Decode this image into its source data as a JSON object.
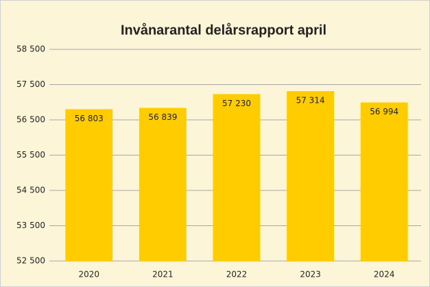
{
  "chart_data": {
    "type": "bar",
    "title": "Invånarantal delårsrapport april",
    "categories": [
      "2020",
      "2021",
      "2022",
      "2023",
      "2024"
    ],
    "values": [
      56803,
      56839,
      57230,
      57314,
      56994
    ],
    "value_labels": [
      "56 803",
      "56 839",
      "57 230",
      "57 314",
      "56 994"
    ],
    "color": "#ffcc00",
    "ylim": [
      52500,
      58500
    ],
    "yticks": [
      {
        "value": 52500,
        "label": "52 500"
      },
      {
        "value": 53500,
        "label": "53 500"
      },
      {
        "value": 54500,
        "label": "54 500"
      },
      {
        "value": 55500,
        "label": "55 500"
      },
      {
        "value": 56500,
        "label": "56 500"
      },
      {
        "value": 57500,
        "label": "57 500"
      },
      {
        "value": 58500,
        "label": "58 500"
      }
    ],
    "grid": true
  }
}
